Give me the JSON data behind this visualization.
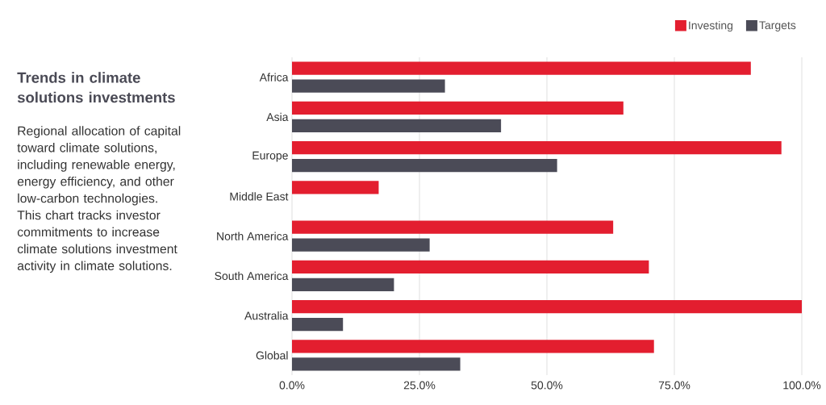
{
  "chart_data": {
    "type": "bar",
    "orientation": "horizontal",
    "title": "Trends in climate solutions investments",
    "subtitle": "Regional allocation of capital toward climate solutions, including renewable energy, energy efficiency, and other low-carbon technologies. This chart tracks investor commitments to increase climate solutions investment activity in climate solutions.",
    "categories": [
      "Africa",
      "Asia",
      "Europe",
      "Middle East",
      "North America",
      "South America",
      "Australia",
      "Global"
    ],
    "series": [
      {
        "name": "Investing",
        "color": "#e31e2f",
        "values": [
          90,
          65,
          96,
          17,
          63,
          70,
          100,
          71
        ]
      },
      {
        "name": "Targets",
        "color": "#4b4b57",
        "values": [
          30,
          41,
          52,
          null,
          27,
          20,
          10,
          33
        ]
      }
    ],
    "xlim": [
      0,
      100
    ],
    "xticks": [
      {
        "value": 0,
        "label": "0.0%"
      },
      {
        "value": 25,
        "label": "25.0%"
      },
      {
        "value": 50,
        "label": "50.0%"
      },
      {
        "value": 75,
        "label": "75.0%"
      },
      {
        "value": 100,
        "label": "100.0%"
      }
    ],
    "grid": "x",
    "legend": "top right"
  }
}
